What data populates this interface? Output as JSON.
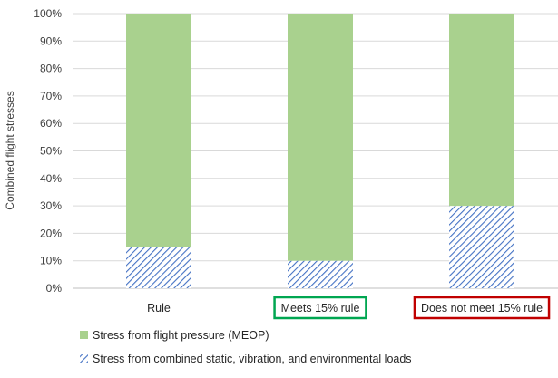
{
  "chart_data": {
    "type": "bar",
    "stacked": true,
    "percent_stacked": true,
    "categories": [
      "Rule",
      "Meets 15% rule",
      "Does not meet 15% rule"
    ],
    "category_boxes": [
      null,
      "#00a651",
      "#c00000"
    ],
    "series": [
      {
        "name": "Stress from combined static, vibration, and environmental loads",
        "values": [
          15,
          10,
          30
        ],
        "color": "#4472c4",
        "pattern": "diagonal-hatch"
      },
      {
        "name": "Stress from flight pressure (MEOP)",
        "values": [
          85,
          90,
          70
        ],
        "color": "#a9d18e",
        "pattern": "solid"
      }
    ],
    "ylabel": "Combined flight stresses",
    "ylim": [
      0,
      100
    ],
    "yticks": [
      "0%",
      "10%",
      "20%",
      "30%",
      "40%",
      "50%",
      "60%",
      "70%",
      "80%",
      "90%",
      "100%"
    ],
    "grid": true,
    "legend": "bottom-left"
  }
}
